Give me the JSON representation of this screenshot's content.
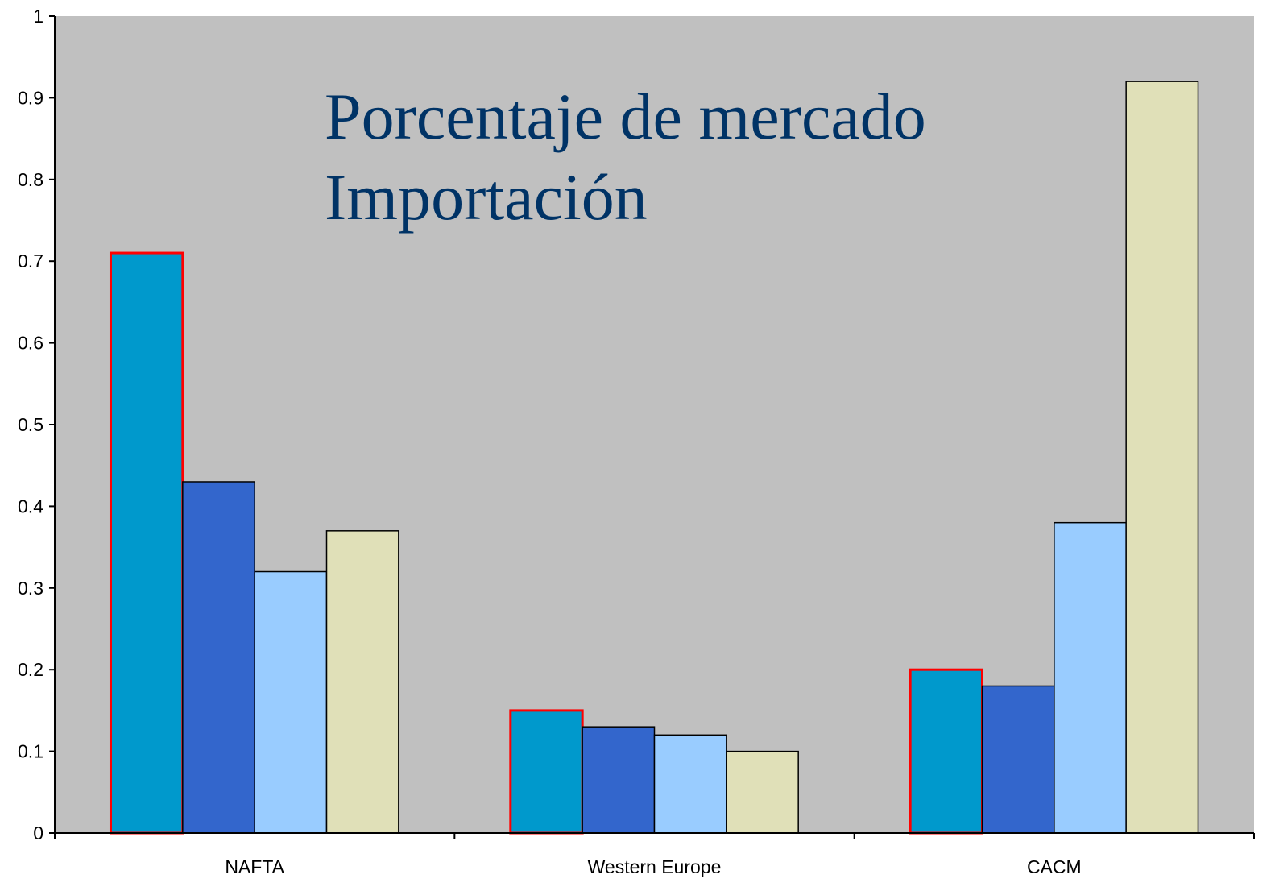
{
  "chart_data": {
    "type": "bar",
    "title": [
      "Porcentaje de mercado",
      "Importación"
    ],
    "categories": [
      "NAFTA",
      "Western Europe",
      "CACM"
    ],
    "series": [
      {
        "color": "#0099cc",
        "edgecolor": "#ff0000",
        "values": [
          0.71,
          0.15,
          0.2
        ]
      },
      {
        "color": "#3366cc",
        "edgecolor": "#000000",
        "values": [
          0.43,
          0.13,
          0.18
        ]
      },
      {
        "color": "#99ccff",
        "edgecolor": "#000000",
        "values": [
          0.32,
          0.12,
          0.38
        ]
      },
      {
        "color": "#e0e0b8",
        "edgecolor": "#000000",
        "values": [
          0.37,
          0.1,
          0.92
        ]
      }
    ],
    "ylim": [
      0,
      1
    ],
    "yticks": [
      0,
      0.1,
      0.2,
      0.3,
      0.4,
      0.5,
      0.6,
      0.7,
      0.8,
      0.9,
      1
    ],
    "plot_background": "#c0c0c0",
    "grid": false
  }
}
